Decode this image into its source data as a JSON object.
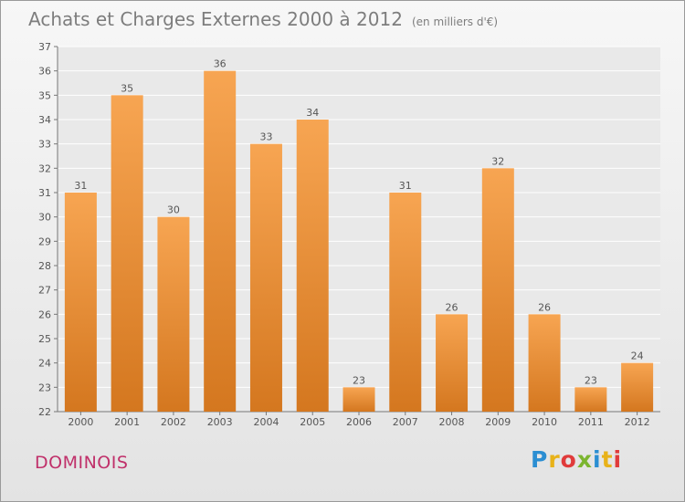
{
  "header": {
    "title": "Achats et Charges Externes 2000 à 2012",
    "unit": "(en milliers d'€)"
  },
  "footer": {
    "commune": "DOMINOIS",
    "logo_text": "Proxiti",
    "logo_colors": [
      "#2b8ed2",
      "#e8b219",
      "#e03b3b",
      "#7bb52f",
      "#2b8ed2",
      "#e8b219",
      "#e03b3b"
    ]
  },
  "chart_data": {
    "type": "bar",
    "title": "Achats et Charges Externes 2000 à 2012",
    "subtitle": "(en milliers d'€)",
    "categories": [
      "2000",
      "2001",
      "2002",
      "2003",
      "2004",
      "2005",
      "2006",
      "2007",
      "2008",
      "2009",
      "2010",
      "2011",
      "2012"
    ],
    "values": [
      31,
      35,
      30,
      36,
      33,
      34,
      23,
      31,
      26,
      32,
      26,
      23,
      24
    ],
    "ylim": [
      22,
      37
    ],
    "yticks": [
      22,
      23,
      24,
      25,
      26,
      27,
      28,
      29,
      30,
      31,
      32,
      33,
      34,
      35,
      36,
      37
    ],
    "grid": true,
    "colors": {
      "bar_top": "#f7a552",
      "bar_bottom": "#d4771f",
      "grid": "#ffffff",
      "text": "#555555"
    }
  }
}
